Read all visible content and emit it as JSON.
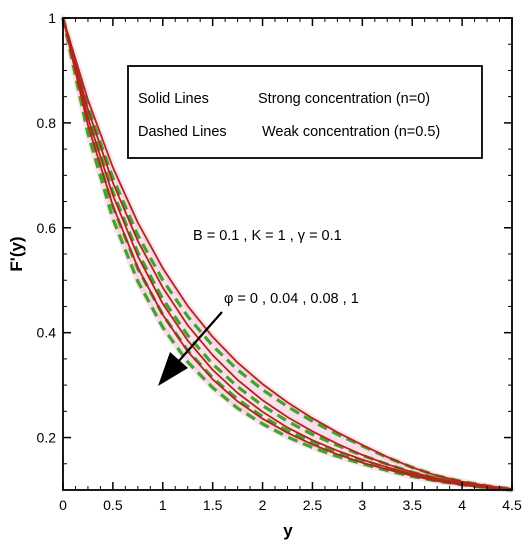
{
  "chart_data": {
    "type": "line",
    "xlabel": "y",
    "ylabel": "F'(y)",
    "xlim": [
      0,
      4.5
    ],
    "ylim": [
      0.1,
      1.0
    ],
    "x_ticks": [
      "0",
      "0.5",
      "1",
      "1.5",
      "2",
      "2.5",
      "3",
      "3.5",
      "4",
      "4.5"
    ],
    "y_ticks": [
      "0.2",
      "0.4",
      "0.6",
      "0.8",
      "1"
    ],
    "y_tick_values": [
      0.2,
      0.4,
      0.6,
      0.8,
      1.0
    ],
    "grid": false,
    "legend": {
      "placement": "top-right",
      "rows": [
        {
          "style": "Solid Lines",
          "label": "Strong concentration (n=0)"
        },
        {
          "style": "Dashed Lines",
          "label": "Weak concentration (n=0.5)"
        }
      ]
    },
    "annotations": {
      "params": "B = 0.1 , K = 1 , γ = 0.1",
      "phi": "φ = 0 , 0.04 , 0.08 , 1"
    },
    "colors": {
      "solid": "#b5241c",
      "dashed": "#3fa52c",
      "band": "#f4c7dc"
    },
    "x": [
      0,
      0.25,
      0.5,
      0.75,
      1.0,
      1.25,
      1.5,
      1.75,
      2.0,
      2.25,
      2.5,
      2.75,
      3.0,
      3.25,
      3.5,
      3.75,
      4.0,
      4.25,
      4.5
    ],
    "series": [
      {
        "style": "solid",
        "values": [
          1.0,
          0.844,
          0.715,
          0.61,
          0.523,
          0.451,
          0.392,
          0.343,
          0.302,
          0.267,
          0.237,
          0.21,
          0.186,
          0.163,
          0.143,
          0.127,
          0.116,
          0.108,
          0.102
        ]
      },
      {
        "style": "solid",
        "values": [
          1.0,
          0.826,
          0.686,
          0.575,
          0.486,
          0.414,
          0.357,
          0.31,
          0.271,
          0.239,
          0.212,
          0.188,
          0.167,
          0.149,
          0.134,
          0.122,
          0.113,
          0.106,
          0.101
        ]
      },
      {
        "style": "solid",
        "values": [
          1.0,
          0.81,
          0.662,
          0.546,
          0.455,
          0.385,
          0.329,
          0.285,
          0.249,
          0.219,
          0.195,
          0.175,
          0.158,
          0.143,
          0.13,
          0.119,
          0.111,
          0.105,
          0.101
        ]
      },
      {
        "style": "solid",
        "values": [
          1.0,
          0.796,
          0.642,
          0.524,
          0.434,
          0.364,
          0.311,
          0.269,
          0.236,
          0.209,
          0.187,
          0.168,
          0.152,
          0.139,
          0.127,
          0.117,
          0.11,
          0.104,
          0.1
        ]
      },
      {
        "style": "dashed",
        "values": [
          1.0,
          0.83,
          0.695,
          0.586,
          0.5,
          0.431,
          0.375,
          0.329,
          0.291,
          0.259,
          0.231,
          0.206,
          0.184,
          0.162,
          0.143,
          0.127,
          0.116,
          0.108,
          0.102
        ]
      },
      {
        "style": "dashed",
        "values": [
          1.0,
          0.812,
          0.668,
          0.553,
          0.464,
          0.395,
          0.34,
          0.297,
          0.261,
          0.231,
          0.206,
          0.185,
          0.166,
          0.149,
          0.134,
          0.122,
          0.113,
          0.106,
          0.101
        ]
      },
      {
        "style": "dashed",
        "values": [
          1.0,
          0.796,
          0.64,
          0.522,
          0.434,
          0.366,
          0.314,
          0.273,
          0.24,
          0.213,
          0.191,
          0.172,
          0.156,
          0.142,
          0.13,
          0.119,
          0.111,
          0.105,
          0.101
        ]
      },
      {
        "style": "dashed",
        "values": [
          1.0,
          0.78,
          0.617,
          0.498,
          0.41,
          0.344,
          0.295,
          0.256,
          0.226,
          0.201,
          0.181,
          0.164,
          0.15,
          0.137,
          0.126,
          0.117,
          0.11,
          0.104,
          0.1
        ]
      }
    ]
  }
}
